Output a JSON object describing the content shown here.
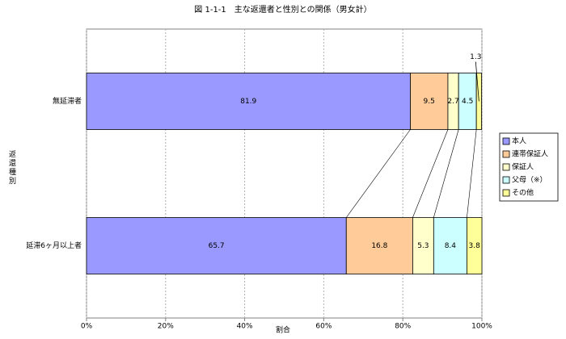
{
  "chart_data": {
    "type": "hbar_stacked",
    "title": "図 1-1-1　主な返還者と性別との関係（男女計）",
    "x_label": "割合",
    "y_label": "返還種別",
    "categories": [
      "無延滞者",
      "延滞6ヶ月以上者"
    ],
    "series": [
      {
        "name": "本人",
        "color": "#9999ff",
        "values": [
          81.9,
          65.7
        ]
      },
      {
        "name": "連帯保証人",
        "color": "#ffcc99",
        "values": [
          9.5,
          16.8
        ]
      },
      {
        "name": "保証人",
        "color": "#ffffcc",
        "values": [
          2.7,
          5.3
        ]
      },
      {
        "name": "父母（※）",
        "color": "#ccffff",
        "values": [
          4.5,
          8.4
        ]
      },
      {
        "name": "その他",
        "color": "#ffff99",
        "values": [
          1.3,
          3.8
        ]
      }
    ],
    "xlim": [
      0,
      100
    ],
    "xticks": [
      {
        "value": 0,
        "label": "0%"
      },
      {
        "value": 20,
        "label": "20%"
      },
      {
        "value": 40,
        "label": "40%"
      },
      {
        "value": 60,
        "label": "60%"
      },
      {
        "value": 80,
        "label": "80%"
      },
      {
        "value": 100,
        "label": "100%"
      }
    ],
    "grid": true,
    "legend": "right"
  }
}
